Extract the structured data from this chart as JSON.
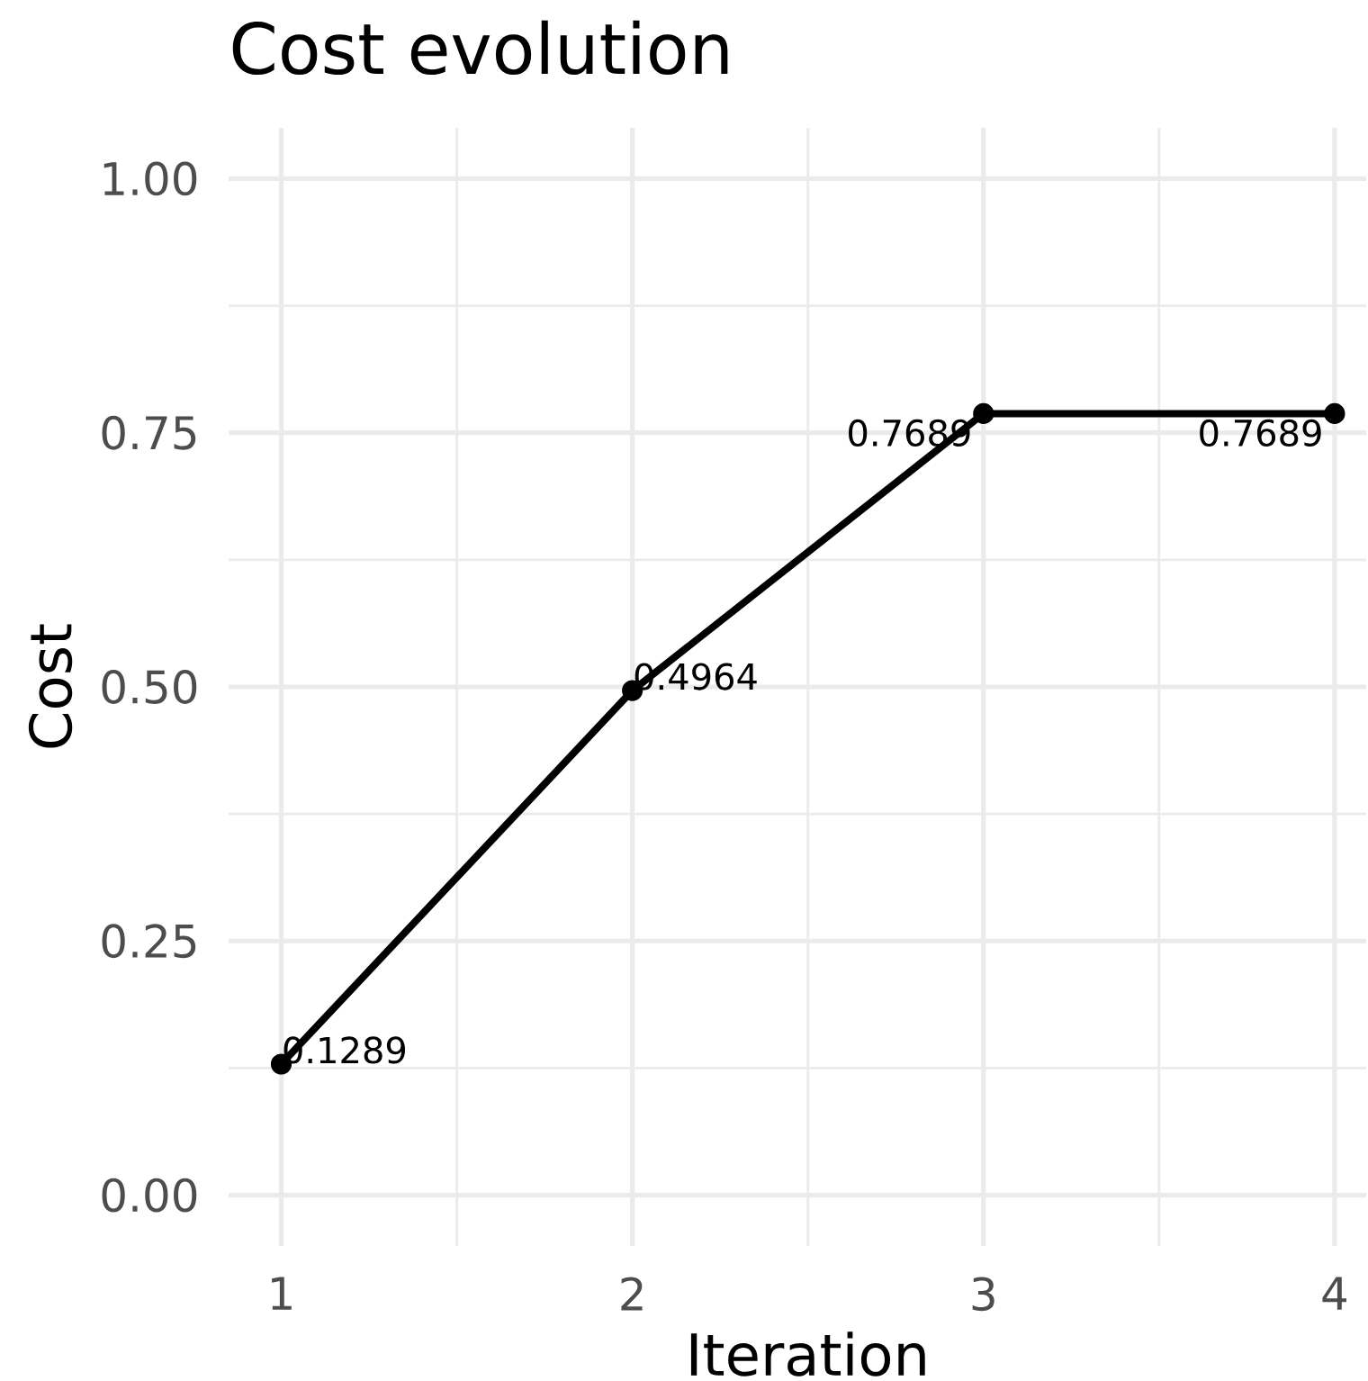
{
  "chart_data": {
    "type": "line",
    "title": "Cost evolution",
    "xlabel": "Iteration",
    "ylabel": "Cost",
    "x": [
      1,
      2,
      3,
      4
    ],
    "values": [
      0.1289,
      0.4964,
      0.7689,
      0.7689
    ],
    "color": "#000000",
    "marker": "circle",
    "line_style": "solid",
    "data_labels": true,
    "grid": true,
    "xlim": [
      0.85,
      4.09
    ],
    "ylim": [
      -0.05,
      1.05
    ],
    "xticks": [
      1,
      2,
      3,
      4
    ],
    "yticks": [
      {
        "value": 0,
        "label": "0.00"
      },
      0.25,
      {
        "value": 0.5,
        "label": "0.50"
      },
      0.75,
      {
        "value": 1,
        "label": "1.00"
      }
    ]
  }
}
